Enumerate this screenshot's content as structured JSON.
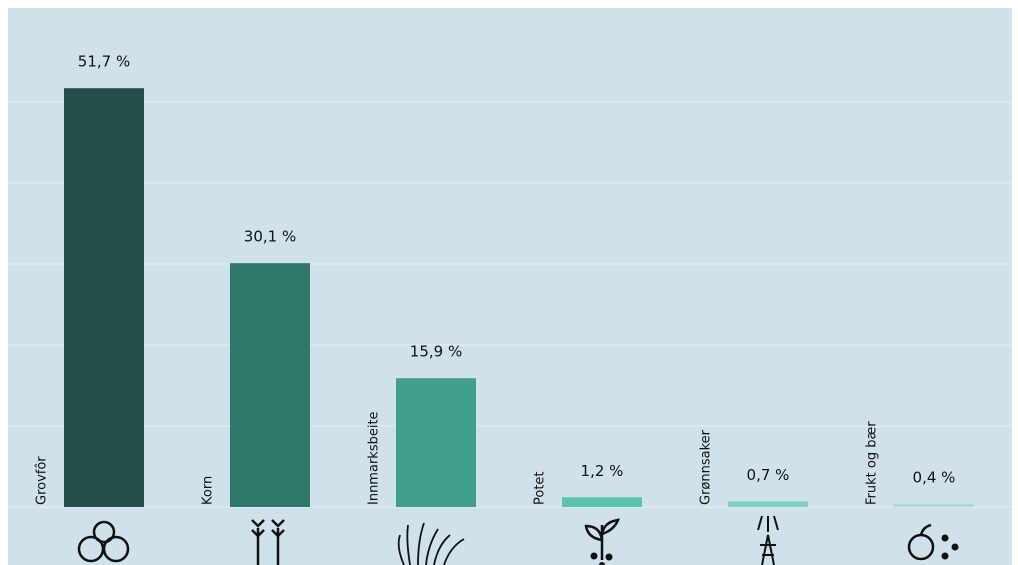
{
  "chart_data": {
    "type": "bar",
    "categories": [
      "Grovfôr",
      "Korn",
      "Innmarksbeite",
      "Potet",
      "Grønnsaker",
      "Frukt og bær"
    ],
    "values": [
      51.7,
      30.1,
      15.9,
      1.2,
      0.7,
      0.4
    ],
    "value_labels": [
      "51,7 %",
      "30,1 %",
      "15,9 %",
      "1,2 %",
      "0,7 %",
      "0,4 %"
    ],
    "colors": [
      "#224f47",
      "#2e786a",
      "#40a08d",
      "#5ac3ad",
      "#7fd1c0",
      "#a9dcd5"
    ],
    "ylim": [
      0,
      61.6
    ],
    "yticks": [
      0,
      10,
      20,
      30,
      40,
      50
    ],
    "grid": true
  }
}
